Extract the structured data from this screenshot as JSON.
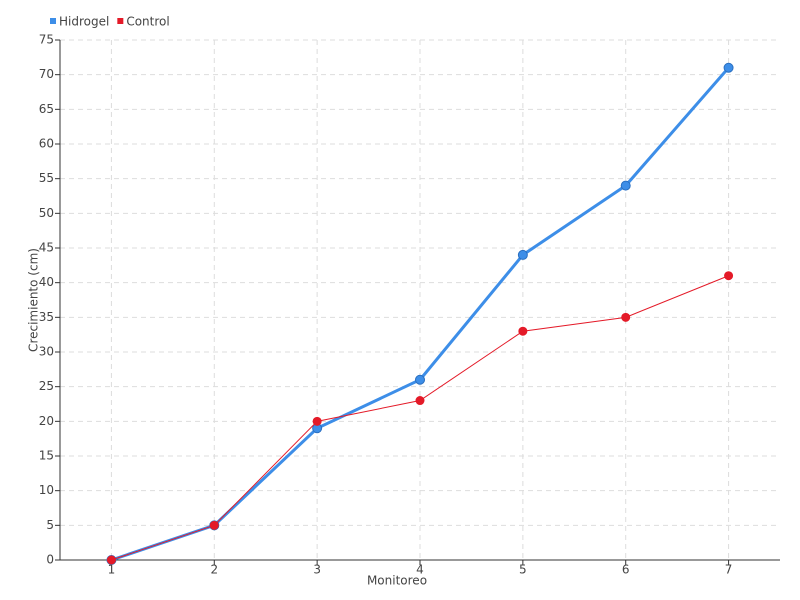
{
  "chart_data": {
    "type": "line",
    "x_label": "Monitoreo",
    "y_label": "Crecimiento (cm)",
    "x": [
      1,
      2,
      3,
      4,
      5,
      6,
      7
    ],
    "series": [
      {
        "name": "Hidrogel",
        "color": "#3d8ee8",
        "values": [
          0,
          5,
          19,
          26,
          44,
          54,
          71
        ]
      },
      {
        "name": "Control",
        "color": "#e41a28",
        "values": [
          0,
          5,
          20,
          23,
          33,
          35,
          41
        ]
      }
    ],
    "xlim": [
      0.5,
      7.5
    ],
    "xticks": [
      1,
      2,
      3,
      4,
      5,
      6,
      7
    ],
    "ylim": [
      0,
      75
    ],
    "yticks": [
      0,
      5,
      10,
      15,
      20,
      25,
      30,
      35,
      40,
      45,
      50,
      55,
      60,
      65,
      70,
      75
    ],
    "grid": true,
    "legend": "top-left"
  }
}
